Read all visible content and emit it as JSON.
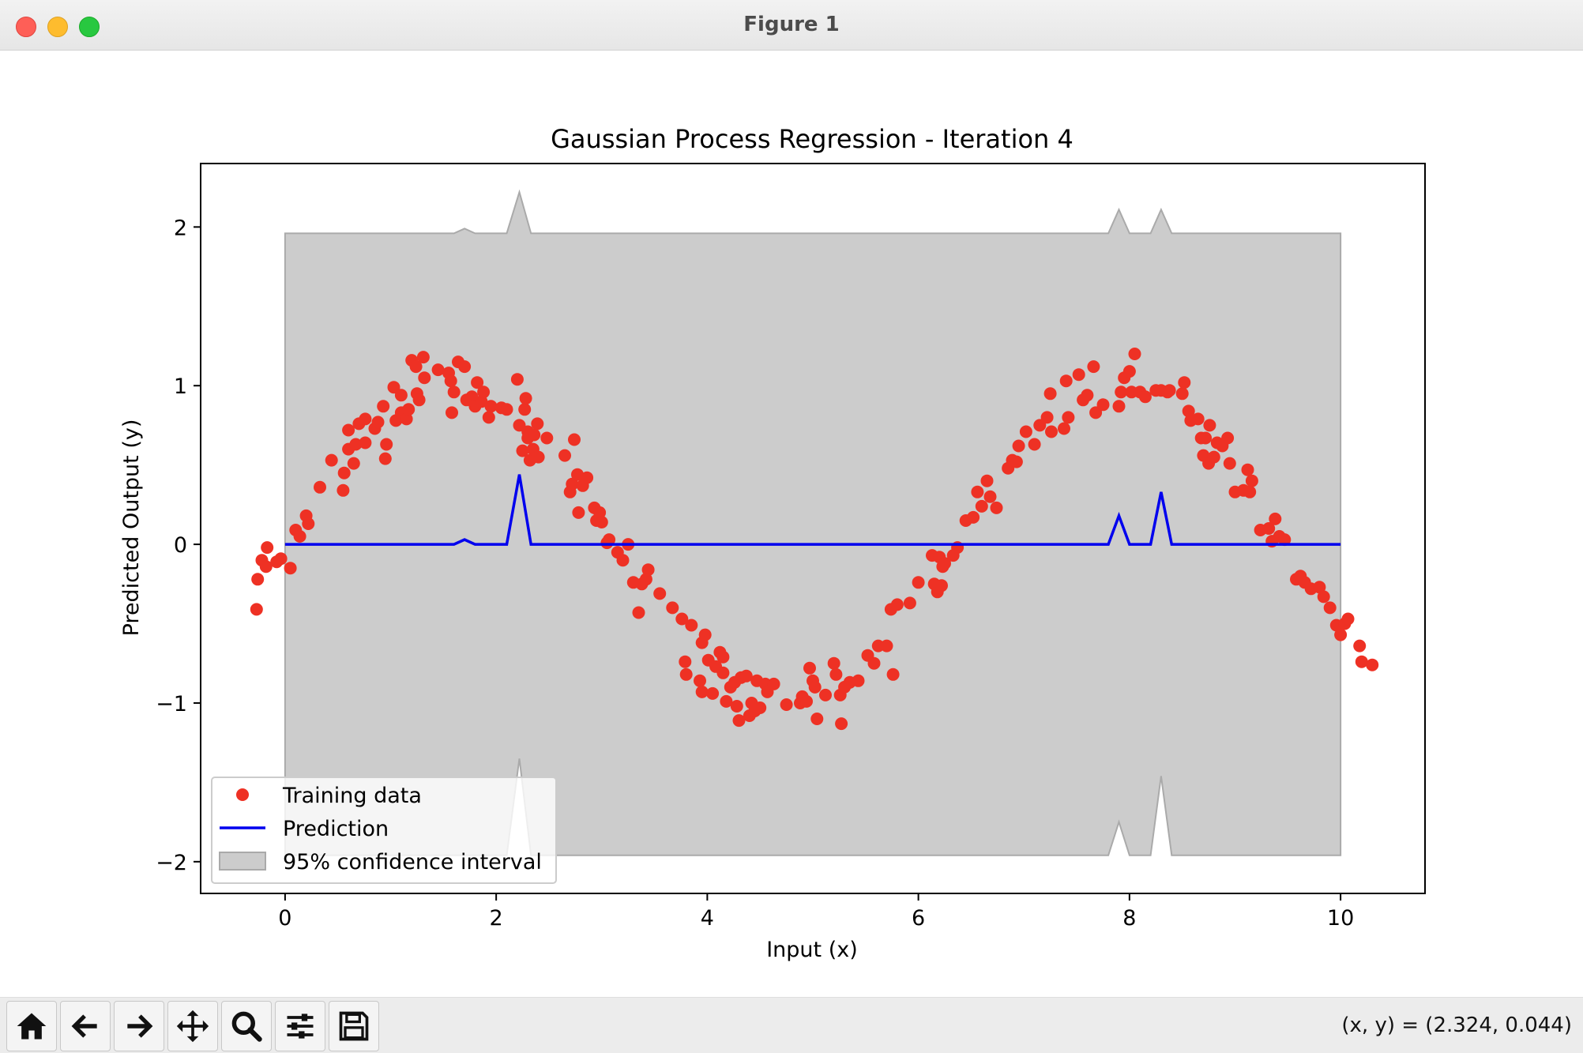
{
  "window": {
    "title": "Figure 1"
  },
  "toolbar": {
    "buttons": [
      {
        "name": "home-button",
        "icon": "home-icon"
      },
      {
        "name": "back-button",
        "icon": "arrow-left-icon"
      },
      {
        "name": "forward-button",
        "icon": "arrow-right-icon"
      },
      {
        "name": "pan-button",
        "icon": "move-icon"
      },
      {
        "name": "zoom-button",
        "icon": "magnifier-icon"
      },
      {
        "name": "configure-subplots-button",
        "icon": "sliders-icon"
      },
      {
        "name": "save-button",
        "icon": "floppy-disk-icon"
      }
    ],
    "coords_text": "(x, y) = (2.324, 0.044)"
  },
  "chart_data": {
    "type": "scatter",
    "title": "Gaussian Process Regression - Iteration 4",
    "xlabel": "Input (x)",
    "ylabel": "Predicted Output (y)",
    "xlim": [
      -0.8,
      10.8
    ],
    "ylim": [
      -2.2,
      2.4
    ],
    "xticks": [
      0,
      2,
      4,
      6,
      8,
      10
    ],
    "yticks": [
      -2,
      -1,
      0,
      1,
      2
    ],
    "ytick_labels": [
      "−2",
      "−1",
      "0",
      "1",
      "2"
    ],
    "legend": {
      "position": "lower-left",
      "entries": [
        "Training data",
        "Prediction",
        "95% confidence interval"
      ]
    },
    "colors": {
      "training": "#ee3124",
      "prediction": "#0000ee",
      "band_fill": "#cccccc",
      "band_edge": "#aaaaaa"
    },
    "prediction": {
      "x": [
        0,
        1.6,
        1.7,
        1.8,
        2.1,
        2.22,
        2.33,
        7.8,
        7.9,
        8.0,
        8.2,
        8.3,
        8.4,
        10
      ],
      "y": [
        0,
        0,
        0.03,
        0,
        0,
        0.44,
        0,
        0,
        0.18,
        0,
        0,
        0.33,
        0,
        0
      ]
    },
    "confidence_upper": {
      "x": [
        0,
        1.6,
        1.7,
        1.8,
        2.1,
        2.22,
        2.33,
        7.8,
        7.9,
        8.0,
        8.2,
        8.3,
        8.4,
        10
      ],
      "y": [
        1.96,
        1.96,
        1.99,
        1.96,
        1.96,
        2.22,
        1.96,
        1.96,
        2.11,
        1.96,
        1.96,
        2.11,
        1.96,
        1.96
      ]
    },
    "confidence_lower": {
      "x": [
        0,
        1.6,
        1.7,
        1.8,
        2.1,
        2.22,
        2.33,
        7.8,
        7.9,
        8.0,
        8.2,
        8.3,
        8.4,
        10
      ],
      "y": [
        -1.96,
        -1.96,
        -1.96,
        -1.96,
        -1.96,
        -1.35,
        -1.96,
        -1.96,
        -1.75,
        -1.96,
        -1.96,
        -1.46,
        -1.96,
        -1.96
      ]
    },
    "training_points": [
      [
        -0.27,
        -0.41
      ],
      [
        -0.26,
        -0.22
      ],
      [
        -0.22,
        -0.1
      ],
      [
        -0.18,
        -0.14
      ],
      [
        -0.17,
        -0.02
      ],
      [
        -0.08,
        -0.11
      ],
      [
        -0.04,
        -0.09
      ],
      [
        0.05,
        -0.15
      ],
      [
        0.1,
        0.09
      ],
      [
        0.14,
        0.05
      ],
      [
        0.2,
        0.18
      ],
      [
        0.22,
        0.13
      ],
      [
        0.33,
        0.36
      ],
      [
        0.44,
        0.53
      ],
      [
        0.55,
        0.34
      ],
      [
        0.56,
        0.45
      ],
      [
        0.6,
        0.6
      ],
      [
        0.6,
        0.72
      ],
      [
        0.65,
        0.51
      ],
      [
        0.67,
        0.63
      ],
      [
        0.7,
        0.76
      ],
      [
        0.76,
        0.64
      ],
      [
        0.76,
        0.79
      ],
      [
        0.85,
        0.73
      ],
      [
        0.88,
        0.77
      ],
      [
        0.93,
        0.87
      ],
      [
        0.95,
        0.54
      ],
      [
        0.96,
        0.63
      ],
      [
        1.03,
        0.99
      ],
      [
        1.05,
        0.78
      ],
      [
        1.1,
        0.83
      ],
      [
        1.1,
        0.94
      ],
      [
        1.15,
        0.79
      ],
      [
        1.17,
        0.85
      ],
      [
        1.2,
        1.16
      ],
      [
        1.24,
        1.12
      ],
      [
        1.25,
        0.95
      ],
      [
        1.27,
        0.91
      ],
      [
        1.31,
        1.18
      ],
      [
        1.32,
        1.05
      ],
      [
        1.45,
        1.1
      ],
      [
        1.55,
        1.08
      ],
      [
        1.57,
        1.03
      ],
      [
        1.58,
        0.83
      ],
      [
        1.6,
        0.96
      ],
      [
        1.64,
        1.15
      ],
      [
        1.7,
        1.12
      ],
      [
        1.72,
        0.91
      ],
      [
        1.77,
        0.93
      ],
      [
        1.8,
        0.87
      ],
      [
        1.82,
        1.02
      ],
      [
        1.86,
        0.9
      ],
      [
        1.88,
        0.96
      ],
      [
        1.93,
        0.8
      ],
      [
        1.95,
        0.87
      ],
      [
        2.05,
        0.86
      ],
      [
        2.1,
        0.85
      ],
      [
        2.2,
        1.04
      ],
      [
        2.22,
        0.75
      ],
      [
        2.25,
        0.59
      ],
      [
        2.27,
        0.85
      ],
      [
        2.28,
        0.92
      ],
      [
        2.3,
        0.67
      ],
      [
        2.3,
        0.71
      ],
      [
        2.32,
        0.53
      ],
      [
        2.35,
        0.6
      ],
      [
        2.36,
        0.69
      ],
      [
        2.39,
        0.76
      ],
      [
        2.4,
        0.55
      ],
      [
        2.48,
        0.67
      ],
      [
        2.65,
        0.56
      ],
      [
        2.7,
        0.33
      ],
      [
        2.72,
        0.38
      ],
      [
        2.74,
        0.66
      ],
      [
        2.77,
        0.44
      ],
      [
        2.78,
        0.2
      ],
      [
        2.82,
        0.37
      ],
      [
        2.86,
        0.42
      ],
      [
        2.93,
        0.23
      ],
      [
        2.95,
        0.15
      ],
      [
        2.98,
        0.2
      ],
      [
        3,
        0.14
      ],
      [
        3.05,
        0.01
      ],
      [
        3.07,
        0.03
      ],
      [
        3.15,
        -0.05
      ],
      [
        3.2,
        -0.1
      ],
      [
        3.25,
        0
      ],
      [
        3.3,
        -0.24
      ],
      [
        3.35,
        -0.43
      ],
      [
        3.38,
        -0.25
      ],
      [
        3.42,
        -0.22
      ],
      [
        3.44,
        -0.16
      ],
      [
        3.55,
        -0.31
      ],
      [
        3.67,
        -0.4
      ],
      [
        3.76,
        -0.47
      ],
      [
        3.79,
        -0.74
      ],
      [
        3.8,
        -0.82
      ],
      [
        3.85,
        -0.51
      ],
      [
        3.93,
        -0.86
      ],
      [
        3.95,
        -0.62
      ],
      [
        3.95,
        -0.93
      ],
      [
        3.98,
        -0.57
      ],
      [
        4.01,
        -0.73
      ],
      [
        4.05,
        -0.94
      ],
      [
        4.08,
        -0.77
      ],
      [
        4.12,
        -0.68
      ],
      [
        4.15,
        -0.71
      ],
      [
        4.15,
        -0.81
      ],
      [
        4.18,
        -0.99
      ],
      [
        4.22,
        -0.9
      ],
      [
        4.26,
        -0.87
      ],
      [
        4.28,
        -1.02
      ],
      [
        4.3,
        -1.11
      ],
      [
        4.32,
        -0.84
      ],
      [
        4.37,
        -0.83
      ],
      [
        4.4,
        -1.08
      ],
      [
        4.42,
        -1
      ],
      [
        4.45,
        -1.05
      ],
      [
        4.47,
        -0.86
      ],
      [
        4.5,
        -1.03
      ],
      [
        4.55,
        -0.88
      ],
      [
        4.57,
        -0.93
      ],
      [
        4.63,
        -0.88
      ],
      [
        4.75,
        -1.01
      ],
      [
        4.88,
        -1
      ],
      [
        4.9,
        -0.96
      ],
      [
        4.94,
        -0.99
      ],
      [
        4.97,
        -0.78
      ],
      [
        5,
        -0.86
      ],
      [
        5.02,
        -0.9
      ],
      [
        5.04,
        -1.1
      ],
      [
        5.12,
        -0.95
      ],
      [
        5.2,
        -0.75
      ],
      [
        5.22,
        -0.82
      ],
      [
        5.26,
        -0.95
      ],
      [
        5.27,
        -1.13
      ],
      [
        5.3,
        -0.9
      ],
      [
        5.35,
        -0.87
      ],
      [
        5.43,
        -0.86
      ],
      [
        5.52,
        -0.7
      ],
      [
        5.58,
        -0.75
      ],
      [
        5.62,
        -0.64
      ],
      [
        5.7,
        -0.64
      ],
      [
        5.74,
        -0.41
      ],
      [
        5.76,
        -0.82
      ],
      [
        5.8,
        -0.38
      ],
      [
        5.92,
        -0.37
      ],
      [
        6,
        -0.24
      ],
      [
        6.13,
        -0.07
      ],
      [
        6.15,
        -0.25
      ],
      [
        6.18,
        -0.3
      ],
      [
        6.2,
        -0.08
      ],
      [
        6.22,
        -0.26
      ],
      [
        6.23,
        -0.14
      ],
      [
        6.25,
        -0.12
      ],
      [
        6.33,
        -0.07
      ],
      [
        6.37,
        -0.02
      ],
      [
        6.45,
        0.15
      ],
      [
        6.52,
        0.17
      ],
      [
        6.56,
        0.33
      ],
      [
        6.6,
        0.24
      ],
      [
        6.65,
        0.4
      ],
      [
        6.68,
        0.3
      ],
      [
        6.74,
        0.23
      ],
      [
        6.85,
        0.48
      ],
      [
        6.89,
        0.53
      ],
      [
        6.93,
        0.52
      ],
      [
        6.95,
        0.62
      ],
      [
        7.02,
        0.71
      ],
      [
        7.1,
        0.63
      ],
      [
        7.15,
        0.75
      ],
      [
        7.22,
        0.8
      ],
      [
        7.25,
        0.95
      ],
      [
        7.26,
        0.71
      ],
      [
        7.38,
        0.73
      ],
      [
        7.4,
        1.03
      ],
      [
        7.42,
        0.8
      ],
      [
        7.52,
        1.07
      ],
      [
        7.56,
        0.91
      ],
      [
        7.6,
        0.94
      ],
      [
        7.66,
        1.12
      ],
      [
        7.68,
        0.83
      ],
      [
        7.75,
        0.88
      ],
      [
        7.9,
        0.87
      ],
      [
        7.92,
        0.96
      ],
      [
        7.95,
        1.05
      ],
      [
        8.02,
        0.96
      ],
      [
        8,
        1.09
      ],
      [
        8.05,
        1.2
      ],
      [
        8.1,
        0.96
      ],
      [
        8.15,
        0.93
      ],
      [
        8.25,
        0.97
      ],
      [
        8.3,
        0.97
      ],
      [
        8.36,
        0.96
      ],
      [
        8.38,
        0.97
      ],
      [
        8.5,
        0.95
      ],
      [
        8.52,
        1.02
      ],
      [
        8.56,
        0.84
      ],
      [
        8.58,
        0.78
      ],
      [
        8.65,
        0.79
      ],
      [
        8.68,
        0.67
      ],
      [
        8.7,
        0.56
      ],
      [
        8.72,
        0.67
      ],
      [
        8.75,
        0.51
      ],
      [
        8.76,
        0.75
      ],
      [
        8.8,
        0.55
      ],
      [
        8.83,
        0.64
      ],
      [
        8.88,
        0.62
      ],
      [
        8.93,
        0.67
      ],
      [
        8.95,
        0.51
      ],
      [
        9,
        0.33
      ],
      [
        9.08,
        0.34
      ],
      [
        9.12,
        0.47
      ],
      [
        9.14,
        0.33
      ],
      [
        9.16,
        0.4
      ],
      [
        9.24,
        0.09
      ],
      [
        9.32,
        0.1
      ],
      [
        9.35,
        0.02
      ],
      [
        9.38,
        0.16
      ],
      [
        9.42,
        0.05
      ],
      [
        9.47,
        0.03
      ],
      [
        9.58,
        -0.22
      ],
      [
        9.62,
        -0.2
      ],
      [
        9.66,
        -0.24
      ],
      [
        9.72,
        -0.28
      ],
      [
        9.8,
        -0.27
      ],
      [
        9.84,
        -0.33
      ],
      [
        9.9,
        -0.4
      ],
      [
        9.96,
        -0.51
      ],
      [
        10,
        -0.57
      ],
      [
        10.04,
        -0.5
      ],
      [
        10.07,
        -0.47
      ],
      [
        10.18,
        -0.64
      ],
      [
        10.2,
        -0.74
      ],
      [
        10.3,
        -0.76
      ]
    ]
  }
}
